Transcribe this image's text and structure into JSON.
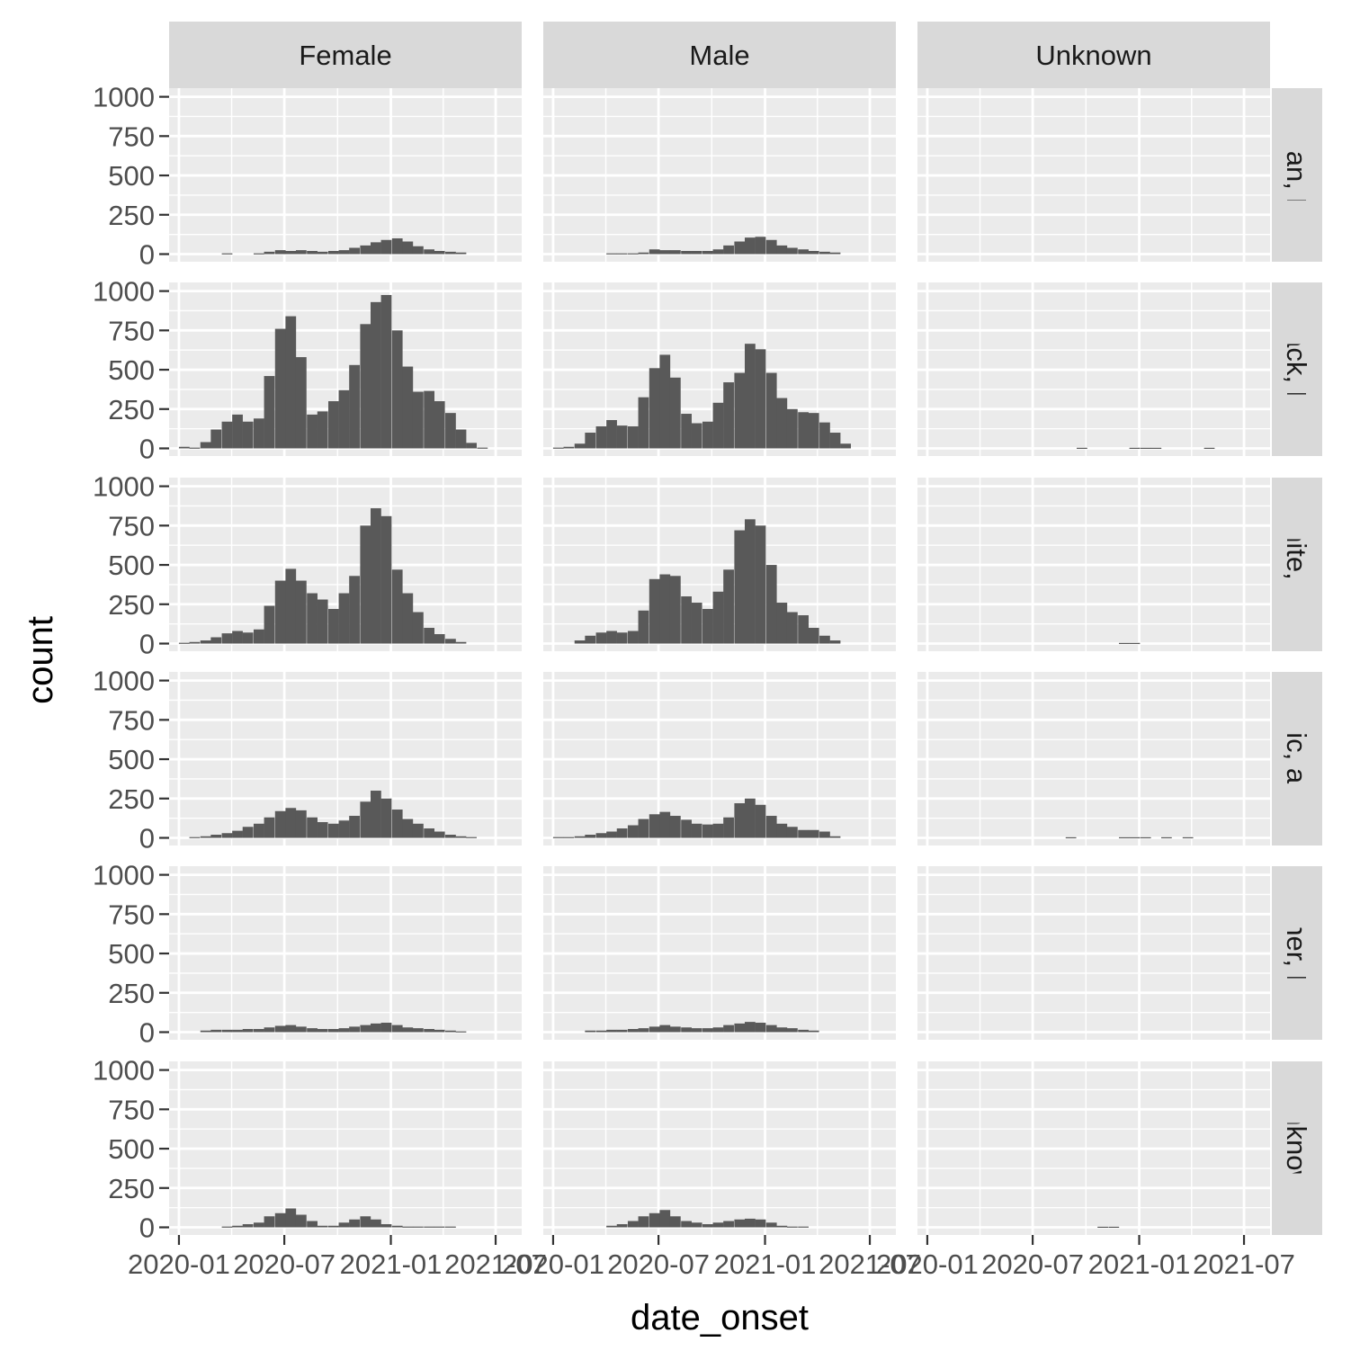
{
  "chart_data": {
    "type": "bar",
    "subtype": "faceted histogram",
    "x_label": "date_onset",
    "y_label": "count",
    "y_ticks": [
      0,
      250,
      500,
      750,
      1000
    ],
    "y_tick_labels": [
      "0",
      "250",
      "500",
      "750",
      "1000"
    ],
    "ylim": [
      0,
      1000
    ],
    "x_tick_labels": [
      "2020-01",
      "2020-07",
      "2021-01",
      "2021-07"
    ],
    "xlim": [
      "2019-12-15",
      "2021-08-15"
    ],
    "bin_width_days": 18.3,
    "bin_starts": [
      "2020-01-01",
      "2020-01-19",
      "2020-02-07",
      "2020-02-25",
      "2020-03-15",
      "2020-04-02",
      "2020-04-20",
      "2020-05-09",
      "2020-05-27",
      "2020-06-15",
      "2020-07-03",
      "2020-07-21",
      "2020-08-09",
      "2020-08-27",
      "2020-09-15",
      "2020-10-03",
      "2020-10-21",
      "2020-11-09",
      "2020-11-27",
      "2020-12-15",
      "2021-01-03",
      "2021-01-21",
      "2021-02-08",
      "2021-02-27",
      "2021-03-17",
      "2021-04-05",
      "2021-04-23",
      "2021-05-11",
      "2021-05-30",
      "2021-06-17"
    ],
    "facet_cols": [
      "Female",
      "Male",
      "Unknown"
    ],
    "facet_rows": [
      "Asian, NH",
      "Black, NH",
      "White, NH",
      "Hispanic, all races",
      "Other, NH",
      "Unknown"
    ],
    "panels": [
      {
        "sex": "Female",
        "race": "Asian, NH",
        "counts": [
          0,
          0,
          0,
          0,
          5,
          0,
          0,
          5,
          15,
          25,
          20,
          25,
          20,
          15,
          20,
          25,
          40,
          55,
          75,
          90,
          100,
          80,
          50,
          30,
          20,
          15,
          10,
          0,
          0,
          0
        ]
      },
      {
        "sex": "Male",
        "race": "Asian, NH",
        "counts": [
          0,
          0,
          0,
          0,
          0,
          5,
          5,
          5,
          10,
          30,
          25,
          25,
          20,
          20,
          20,
          30,
          55,
          80,
          105,
          110,
          90,
          55,
          40,
          30,
          20,
          15,
          10,
          0,
          0,
          0
        ]
      },
      {
        "sex": "Unknown",
        "race": "Asian, NH",
        "counts": [
          0,
          0,
          0,
          0,
          0,
          0,
          0,
          0,
          0,
          0,
          0,
          0,
          0,
          0,
          0,
          0,
          0,
          0,
          0,
          0,
          0,
          0,
          0,
          0,
          0,
          0,
          0,
          0,
          0,
          0
        ]
      },
      {
        "sex": "Female",
        "race": "Black, NH",
        "counts": [
          10,
          5,
          40,
          120,
          170,
          215,
          170,
          190,
          460,
          760,
          840,
          580,
          215,
          235,
          300,
          370,
          530,
          790,
          930,
          975,
          750,
          520,
          360,
          365,
          300,
          225,
          120,
          35,
          5,
          0
        ]
      },
      {
        "sex": "Male",
        "race": "Black, NH",
        "counts": [
          5,
          10,
          30,
          100,
          140,
          180,
          145,
          140,
          325,
          510,
          595,
          450,
          220,
          160,
          170,
          290,
          420,
          480,
          665,
          630,
          480,
          320,
          250,
          230,
          225,
          165,
          100,
          30,
          0,
          0
        ]
      },
      {
        "sex": "Unknown",
        "race": "Black, NH",
        "counts": [
          0,
          0,
          0,
          0,
          0,
          0,
          0,
          0,
          0,
          0,
          0,
          0,
          0,
          0,
          4,
          0,
          0,
          0,
          0,
          4,
          4,
          4,
          0,
          0,
          0,
          0,
          4,
          0,
          0,
          0
        ]
      },
      {
        "sex": "Female",
        "race": "White, NH",
        "counts": [
          5,
          10,
          20,
          40,
          65,
          80,
          70,
          90,
          240,
          400,
          475,
          400,
          320,
          280,
          220,
          320,
          430,
          750,
          860,
          810,
          470,
          320,
          200,
          100,
          60,
          30,
          10,
          0,
          0,
          0
        ]
      },
      {
        "sex": "Male",
        "race": "White, NH",
        "counts": [
          0,
          0,
          20,
          50,
          70,
          80,
          70,
          80,
          210,
          410,
          440,
          430,
          300,
          260,
          220,
          330,
          470,
          720,
          790,
          750,
          500,
          260,
          200,
          180,
          100,
          50,
          20,
          0,
          0,
          0
        ]
      },
      {
        "sex": "Unknown",
        "race": "White, NH",
        "counts": [
          0,
          0,
          0,
          0,
          0,
          0,
          0,
          0,
          0,
          0,
          0,
          0,
          0,
          0,
          0,
          0,
          0,
          0,
          4,
          4,
          0,
          0,
          0,
          0,
          0,
          0,
          0,
          0,
          0,
          0
        ]
      },
      {
        "sex": "Female",
        "race": "Hispanic, all races",
        "counts": [
          0,
          5,
          10,
          20,
          30,
          45,
          70,
          90,
          130,
          170,
          190,
          175,
          130,
          100,
          90,
          110,
          140,
          230,
          300,
          250,
          180,
          120,
          90,
          60,
          40,
          20,
          10,
          5,
          0,
          0
        ]
      },
      {
        "sex": "Male",
        "race": "Hispanic, all races",
        "counts": [
          5,
          5,
          10,
          20,
          30,
          40,
          60,
          80,
          120,
          150,
          165,
          140,
          115,
          90,
          85,
          90,
          130,
          220,
          250,
          210,
          140,
          90,
          70,
          50,
          50,
          40,
          10,
          0,
          0,
          0
        ]
      },
      {
        "sex": "Unknown",
        "race": "Hispanic, all races",
        "counts": [
          0,
          0,
          0,
          0,
          0,
          0,
          0,
          0,
          0,
          0,
          0,
          0,
          0,
          4,
          0,
          0,
          0,
          0,
          4,
          4,
          4,
          0,
          4,
          0,
          4,
          0,
          0,
          0,
          0,
          0
        ]
      },
      {
        "sex": "Female",
        "race": "Other, NH",
        "counts": [
          0,
          0,
          10,
          15,
          15,
          15,
          20,
          20,
          30,
          40,
          45,
          35,
          25,
          20,
          20,
          25,
          35,
          45,
          55,
          60,
          45,
          30,
          25,
          20,
          15,
          10,
          5,
          0,
          0,
          0
        ]
      },
      {
        "sex": "Male",
        "race": "Other, NH",
        "counts": [
          0,
          0,
          0,
          10,
          10,
          15,
          15,
          20,
          25,
          35,
          45,
          35,
          30,
          25,
          25,
          30,
          45,
          55,
          65,
          60,
          45,
          30,
          25,
          15,
          10,
          0,
          0,
          0,
          0,
          0
        ]
      },
      {
        "sex": "Unknown",
        "race": "Other, NH",
        "counts": [
          0,
          0,
          0,
          0,
          0,
          0,
          0,
          0,
          0,
          0,
          0,
          0,
          0,
          0,
          0,
          0,
          0,
          0,
          0,
          0,
          0,
          0,
          0,
          0,
          0,
          0,
          0,
          0,
          0,
          0
        ]
      },
      {
        "sex": "Female",
        "race": "Unknown",
        "counts": [
          0,
          0,
          0,
          0,
          5,
          10,
          20,
          30,
          70,
          90,
          120,
          80,
          40,
          10,
          10,
          30,
          50,
          70,
          50,
          20,
          10,
          5,
          5,
          5,
          5,
          5,
          0,
          0,
          0,
          0
        ]
      },
      {
        "sex": "Male",
        "race": "Unknown",
        "counts": [
          0,
          0,
          0,
          0,
          0,
          10,
          20,
          40,
          70,
          90,
          110,
          70,
          40,
          30,
          20,
          30,
          40,
          50,
          55,
          50,
          30,
          10,
          5,
          5,
          0,
          0,
          0,
          0,
          0,
          0
        ]
      },
      {
        "sex": "Unknown",
        "race": "Unknown",
        "counts": [
          0,
          0,
          0,
          0,
          0,
          0,
          0,
          0,
          0,
          0,
          0,
          0,
          0,
          0,
          0,
          0,
          4,
          4,
          0,
          0,
          0,
          0,
          0,
          0,
          0,
          0,
          0,
          0,
          0,
          0
        ]
      }
    ],
    "colors": {
      "bar": "#595959",
      "panel_background": "#ebebeb",
      "strip_background": "#d9d9d9",
      "grid": "#ffffff"
    }
  }
}
